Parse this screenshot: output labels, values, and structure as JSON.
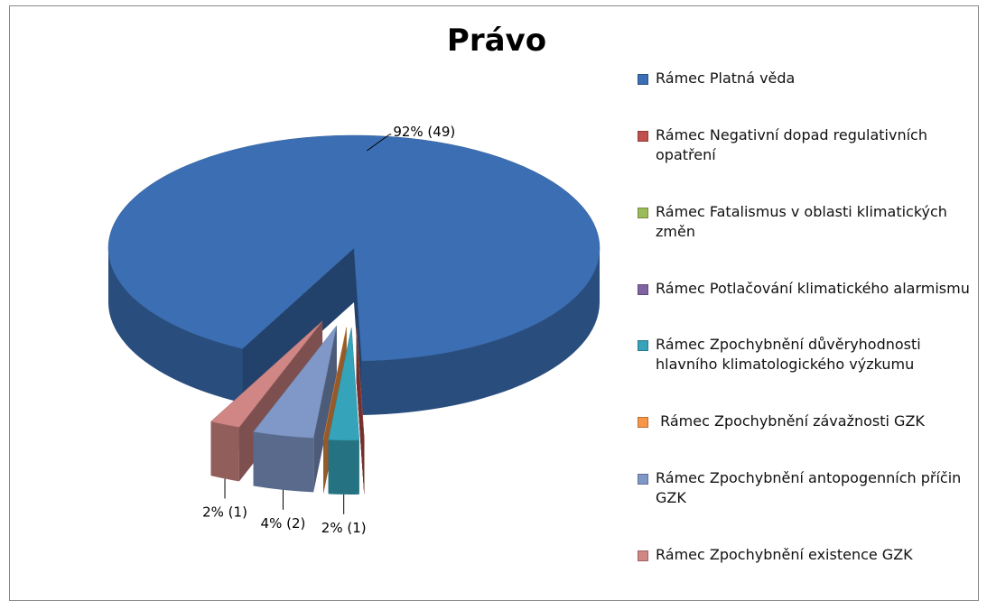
{
  "chart_data": {
    "type": "pie3d",
    "title": "Právo",
    "categories": [
      "Rámec Platná věda",
      "Rámec Negativní dopad regulativních opatření",
      "Rámec Fatalismus v oblasti klimatických změn",
      "Rámec Potlačování klimatického alarmismu",
      "Rámec Zpochybnění důvěryhodnosti hlavního klimatologického výzkumu",
      " Rámec Zpochybnění závažnosti GZK",
      "Rámec Zpochybnění antopogenních příčin GZK",
      "Rámec Zpochybnění existence GZK"
    ],
    "values": [
      92,
      0,
      0,
      0,
      2,
      0,
      4,
      2
    ],
    "value_labels": [
      "92% (49)",
      null,
      null,
      null,
      "2%  (1)",
      null,
      "4% (2)",
      "2% (1)"
    ],
    "colors": [
      "#3b6eb3",
      "#c0504d",
      "#9bbb59",
      "#8064a2",
      "#35a3ba",
      "#f79646",
      "#7f98c8",
      "#d08684"
    ],
    "legend": "right"
  }
}
